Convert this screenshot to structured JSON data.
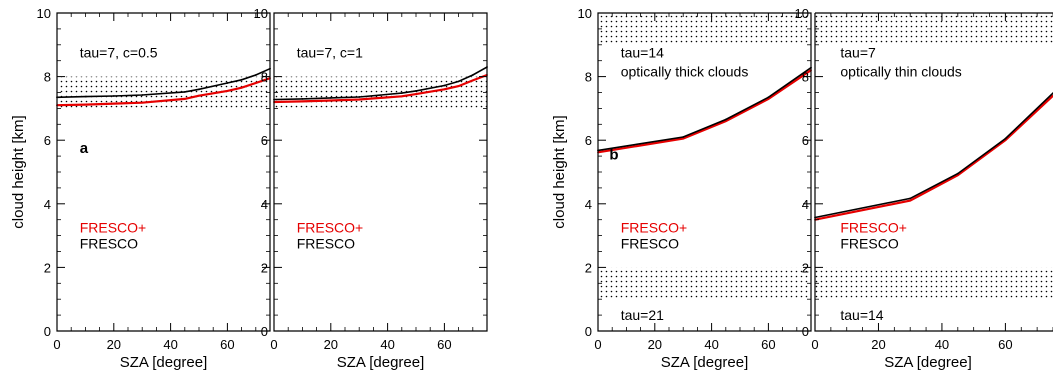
{
  "chart_data": [
    {
      "type": "line",
      "panel": "a-left",
      "xlabel": "SZA [degree]",
      "ylabel": "cloud height [km]",
      "xlim": [
        0,
        75
      ],
      "ylim": [
        0,
        10
      ],
      "xticks": [
        "0",
        "20",
        "40",
        "60"
      ],
      "yticks": [
        "0",
        "2",
        "4",
        "6",
        "8",
        "10"
      ],
      "annotations": [
        {
          "text": "tau=7, c=0.5",
          "x": 8,
          "y": 8.6,
          "color": "#000000"
        },
        {
          "text": "a",
          "x": 8,
          "y": 5.6,
          "color": "#000000",
          "style": "letter"
        }
      ],
      "legend": [
        {
          "text": "FRESCO+",
          "x": 8,
          "y": 3.1,
          "color": "#e60000"
        },
        {
          "text": "FRESCO",
          "x": 8,
          "y": 2.6,
          "color": "#000000"
        }
      ],
      "shaded_bands": [
        [
          7,
          8
        ]
      ],
      "series": [
        {
          "name": "FRESCO+",
          "color": "#e60000",
          "x": [
            0,
            10,
            20,
            30,
            45,
            50,
            60,
            65,
            70,
            75
          ],
          "y": [
            7.1,
            7.12,
            7.15,
            7.18,
            7.3,
            7.4,
            7.55,
            7.65,
            7.8,
            7.95
          ]
        },
        {
          "name": "FRESCO",
          "color": "#000000",
          "x": [
            0,
            10,
            20,
            30,
            45,
            50,
            60,
            65,
            70,
            75
          ],
          "y": [
            7.35,
            7.37,
            7.39,
            7.42,
            7.52,
            7.6,
            7.8,
            7.9,
            8.05,
            8.25
          ]
        }
      ]
    },
    {
      "type": "line",
      "panel": "a-right",
      "xlabel": "SZA [degree]",
      "ylabel": "",
      "xlim": [
        0,
        75
      ],
      "ylim": [
        0,
        10
      ],
      "xticks": [
        "0",
        "20",
        "40",
        "60"
      ],
      "yticks": [
        "0",
        "2",
        "4",
        "6",
        "8",
        "10"
      ],
      "annotations": [
        {
          "text": "tau=7, c=1",
          "x": 8,
          "y": 8.6,
          "color": "#000000"
        }
      ],
      "legend": [
        {
          "text": "FRESCO+",
          "x": 8,
          "y": 3.1,
          "color": "#e60000"
        },
        {
          "text": "FRESCO",
          "x": 8,
          "y": 2.6,
          "color": "#000000"
        }
      ],
      "shaded_bands": [
        [
          7,
          8
        ]
      ],
      "series": [
        {
          "name": "FRESCO+",
          "color": "#e60000",
          "x": [
            0,
            10,
            20,
            30,
            45,
            50,
            60,
            65,
            70,
            75
          ],
          "y": [
            7.2,
            7.22,
            7.25,
            7.28,
            7.38,
            7.45,
            7.6,
            7.7,
            7.88,
            8.05
          ]
        },
        {
          "name": "FRESCO",
          "color": "#000000",
          "x": [
            0,
            10,
            20,
            30,
            45,
            50,
            60,
            65,
            70,
            75
          ],
          "y": [
            7.28,
            7.3,
            7.33,
            7.36,
            7.48,
            7.55,
            7.72,
            7.85,
            8.05,
            8.3
          ]
        }
      ]
    },
    {
      "type": "line",
      "panel": "b-left",
      "xlabel": "SZA [degree]",
      "ylabel": "cloud height [km]",
      "xlim": [
        0,
        75
      ],
      "ylim": [
        0,
        10
      ],
      "xticks": [
        "0",
        "20",
        "40",
        "60"
      ],
      "yticks": [
        "0",
        "2",
        "4",
        "6",
        "8",
        "10"
      ],
      "annotations": [
        {
          "text": "tau=14",
          "x": 8,
          "y": 8.6,
          "color": "#000000"
        },
        {
          "text": "optically thick clouds",
          "x": 8,
          "y": 8.0,
          "color": "#000000"
        },
        {
          "text": "tau=21",
          "x": 8,
          "y": 0.35,
          "color": "#000000"
        },
        {
          "text": "b",
          "x": 4,
          "y": 5.4,
          "color": "#000000",
          "style": "letter"
        }
      ],
      "legend": [
        {
          "text": "FRESCO+",
          "x": 8,
          "y": 3.1,
          "color": "#e60000"
        },
        {
          "text": "FRESCO",
          "x": 8,
          "y": 2.6,
          "color": "#000000"
        }
      ],
      "shaded_bands": [
        [
          9,
          10
        ],
        [
          1,
          2
        ]
      ],
      "series": [
        {
          "name": "FRESCO+",
          "color": "#e60000",
          "x": [
            0,
            30,
            45,
            60,
            75
          ],
          "y": [
            5.62,
            6.05,
            6.6,
            7.3,
            8.2
          ]
        },
        {
          "name": "FRESCO",
          "color": "#000000",
          "x": [
            0,
            30,
            45,
            60,
            75
          ],
          "y": [
            5.68,
            6.1,
            6.65,
            7.35,
            8.28
          ]
        }
      ]
    },
    {
      "type": "line",
      "panel": "b-right",
      "xlabel": "SZA [degree]",
      "ylabel": "",
      "xlim": [
        0,
        75
      ],
      "ylim": [
        0,
        10
      ],
      "xticks": [
        "0",
        "20",
        "40",
        "60"
      ],
      "yticks": [
        "0",
        "2",
        "4",
        "6",
        "8",
        "10"
      ],
      "annotations": [
        {
          "text": "tau=7",
          "x": 8,
          "y": 8.6,
          "color": "#000000"
        },
        {
          "text": "optically thin clouds",
          "x": 8,
          "y": 8.0,
          "color": "#000000"
        },
        {
          "text": "tau=14",
          "x": 8,
          "y": 0.35,
          "color": "#000000"
        }
      ],
      "legend": [
        {
          "text": "FRESCO+",
          "x": 8,
          "y": 3.1,
          "color": "#e60000"
        },
        {
          "text": "FRESCO",
          "x": 8,
          "y": 2.6,
          "color": "#000000"
        }
      ],
      "shaded_bands": [
        [
          9,
          10
        ],
        [
          1,
          2
        ]
      ],
      "series": [
        {
          "name": "FRESCO+",
          "color": "#e60000",
          "x": [
            0,
            30,
            45,
            60,
            75
          ],
          "y": [
            3.5,
            4.1,
            4.9,
            6.0,
            7.4
          ]
        },
        {
          "name": "FRESCO",
          "color": "#000000",
          "x": [
            0,
            30,
            45,
            60,
            75
          ],
          "y": [
            3.57,
            4.17,
            4.95,
            6.05,
            7.48
          ]
        }
      ]
    }
  ]
}
